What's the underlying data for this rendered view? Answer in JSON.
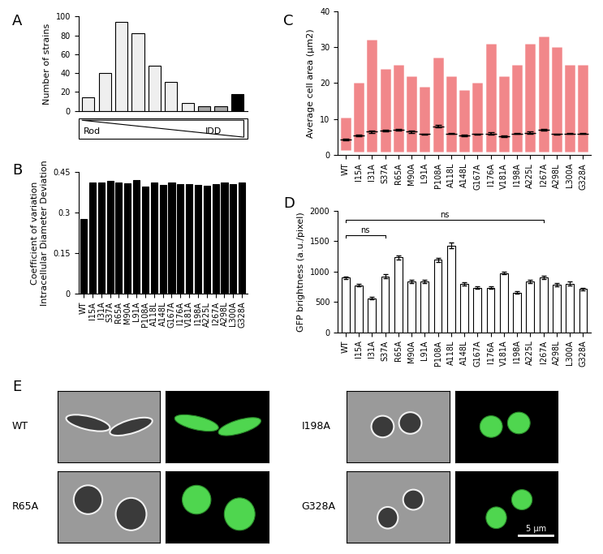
{
  "chart_data": [
    {
      "type": "bar",
      "title": "A",
      "ylabel": "Number of strains",
      "categories": [
        null,
        null,
        null,
        null,
        null,
        null,
        null,
        null,
        null,
        null
      ],
      "values": [
        14,
        40,
        94,
        82,
        48,
        31,
        8,
        5,
        5,
        18
      ],
      "colors": [
        "#efefef",
        "#efefef",
        "#efefef",
        "#efefef",
        "#efefef",
        "#efefef",
        "#efefef",
        "#a6a6a6",
        "#a6a6a6",
        "#000000"
      ],
      "ylim": [
        0,
        100
      ],
      "yticks": [
        0,
        20,
        40,
        60,
        80,
        100
      ],
      "tick_labels": "y",
      "annotations": [
        "Rod",
        "IDD"
      ]
    },
    {
      "type": "bar",
      "title": "B",
      "ylabel": "Coefficient of variation\nIntracellular Diameter Deviation",
      "categories": [
        "WT",
        "I15A",
        "I31A",
        "S37A",
        "R65A",
        "M90A",
        "L91A",
        "P108A",
        "A118L",
        "A148L",
        "G167A",
        "I176A",
        "V181A",
        "I198A",
        "A225L",
        "I267A",
        "A298L",
        "L300A",
        "G328A"
      ],
      "values": [
        0.275,
        0.41,
        0.41,
        0.415,
        0.41,
        0.408,
        0.42,
        0.395,
        0.41,
        0.4,
        0.41,
        0.405,
        0.405,
        0.4,
        0.397,
        0.405,
        0.41,
        0.405,
        0.41
      ],
      "color": "#000000",
      "ylim": [
        0,
        0.45
      ],
      "yticks": [
        0,
        0.15,
        0.3,
        0.45
      ]
    },
    {
      "type": "strip",
      "title": "C",
      "ylabel": "Average cell area (µm2)",
      "categories": [
        "WT",
        "I15A",
        "I31A",
        "S37A",
        "R65A",
        "M90A",
        "L91A",
        "P108A",
        "A118L",
        "A148L",
        "G167A",
        "I176A",
        "V181A",
        "I198A",
        "A225L",
        "I267A",
        "A298L",
        "L300A",
        "G328A"
      ],
      "values": [
        4.3,
        5.5,
        6.5,
        6.8,
        7.0,
        6.5,
        5.8,
        8.0,
        6.0,
        5.5,
        5.8,
        6.0,
        5.3,
        6.0,
        6.2,
        7.0,
        5.8,
        6.0,
        6.0
      ],
      "errors": [
        0.2,
        0.2,
        0.3,
        0.3,
        0.3,
        0.3,
        0.2,
        0.3,
        0.2,
        0.2,
        0.2,
        0.3,
        0.2,
        0.2,
        0.3,
        0.3,
        0.2,
        0.2,
        0.2
      ],
      "min": [
        1.5,
        1.0,
        1.0,
        1.0,
        1.0,
        1.0,
        1.0,
        1.0,
        1.0,
        1.0,
        1.0,
        1.0,
        1.0,
        1.0,
        1.0,
        1.0,
        1.0,
        1.0,
        1.0
      ],
      "max": [
        10.5,
        20,
        32,
        24,
        25,
        22,
        19,
        27,
        22,
        18,
        20,
        31,
        22,
        25,
        31,
        33,
        30,
        25,
        25
      ],
      "color": "#e8383d",
      "ylim": [
        0,
        40
      ],
      "yticks": [
        0,
        10,
        20,
        30,
        40
      ]
    },
    {
      "type": "bar",
      "title": "D",
      "ylabel": "GFP brightness (a.u./pixel)",
      "categories": [
        "WT",
        "I15A",
        "I31A",
        "S37A",
        "R65A",
        "M90A",
        "L91A",
        "P108A",
        "A118L",
        "A148L",
        "G167A",
        "I176A",
        "V181A",
        "I198A",
        "A225L",
        "I267A",
        "A298L",
        "L300A",
        "G328A"
      ],
      "values": [
        900,
        775,
        560,
        920,
        1230,
        840,
        835,
        1190,
        1425,
        800,
        735,
        735,
        975,
        655,
        835,
        905,
        780,
        800,
        710
      ],
      "errors": [
        20,
        25,
        20,
        35,
        35,
        25,
        25,
        30,
        45,
        25,
        25,
        25,
        25,
        20,
        25,
        30,
        25,
        30,
        25
      ],
      "color": "#ffffff",
      "ylim": [
        0,
        2000
      ],
      "yticks": [
        0,
        500,
        1000,
        1500,
        2000
      ],
      "annotations": [
        {
          "text": "ns",
          "from": "WT",
          "to": "S37A",
          "y": 1590
        },
        {
          "text": "ns",
          "from": "WT",
          "to": "I267A",
          "y": 1850
        }
      ]
    }
  ],
  "images": {
    "title": "E",
    "labels": [
      "WT",
      "I198A",
      "R65A",
      "G328A"
    ],
    "scale_bar": "5 µm"
  }
}
